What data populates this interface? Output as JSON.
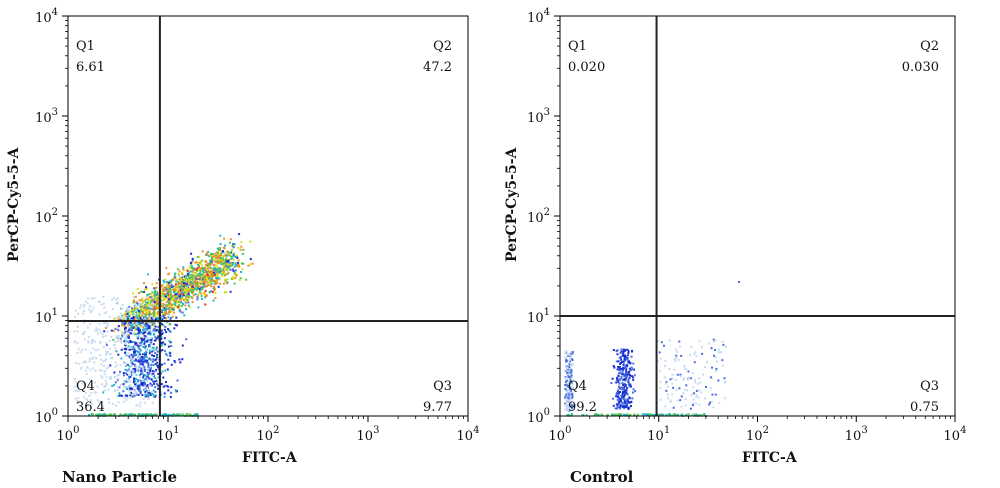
{
  "chart_data": [
    {
      "type": "scatter",
      "title": "Nano Particle",
      "xlabel": "FITC-A",
      "ylabel": "PerCP-Cy5-5-A",
      "xscale": "log",
      "yscale": "log",
      "xlim": [
        1,
        10000
      ],
      "ylim": [
        1,
        10000
      ],
      "x_ticks": [
        "10^0",
        "10^1",
        "10^2",
        "10^3",
        "10^4"
      ],
      "y_ticks": [
        "10^0",
        "10^1",
        "10^2",
        "10^3",
        "10^4"
      ],
      "gate": {
        "x": 8.3,
        "y": 8.9
      },
      "quadrants": [
        {
          "name": "Q1",
          "value": "6.61"
        },
        {
          "name": "Q2",
          "value": "47.2"
        },
        {
          "name": "Q3",
          "value": "9.77"
        },
        {
          "name": "Q4",
          "value": "36.4"
        }
      ],
      "grid": false
    },
    {
      "type": "scatter",
      "title": "Control",
      "xlabel": "FITC-A",
      "ylabel": "PerCP-Cy5-5-A",
      "xscale": "log",
      "yscale": "log",
      "xlim": [
        1,
        10000
      ],
      "ylim": [
        1,
        10000
      ],
      "x_ticks": [
        "10^0",
        "10^1",
        "10^2",
        "10^3",
        "10^4"
      ],
      "y_ticks": [
        "10^0",
        "10^1",
        "10^2",
        "10^3",
        "10^4"
      ],
      "gate": {
        "x": 9.5,
        "y": 10.0
      },
      "quadrants": [
        {
          "name": "Q1",
          "value": "0.020"
        },
        {
          "name": "Q2",
          "value": "0.030"
        },
        {
          "name": "Q3",
          "value": "0.75"
        },
        {
          "name": "Q4",
          "value": "99.2"
        }
      ],
      "grid": false
    }
  ],
  "colors": {
    "axis": "#000000",
    "density": [
      "#c6dbef",
      "#4a6fe3",
      "#1a2fd0",
      "#22b5c9",
      "#4cc84a",
      "#d9e021",
      "#f28c28",
      "#e0301e"
    ]
  }
}
